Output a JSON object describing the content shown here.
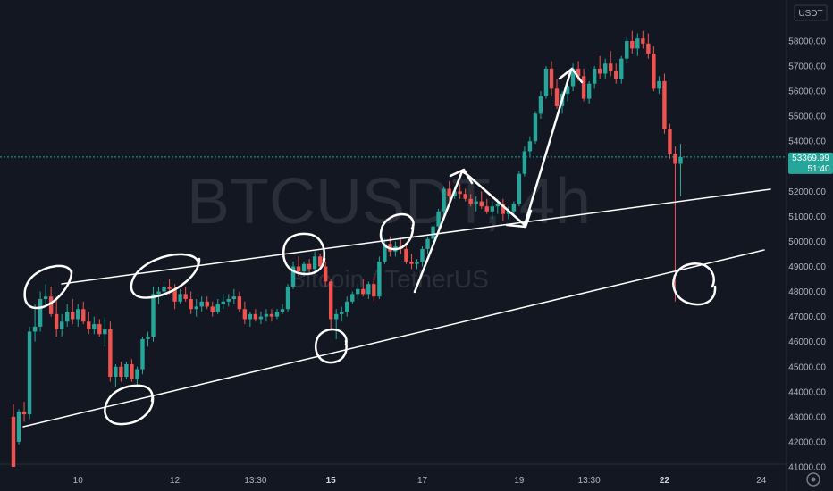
{
  "chart_data": {
    "type": "candlestick",
    "symbol_watermark": "BTCUSDT, 4h",
    "name_watermark": "Bitcoin / TetherUS",
    "currency_label": "USDT",
    "settings_icon": "gear-icon",
    "price_label": "53369.99",
    "countdown_label": "51:40",
    "current_price": 53369.99,
    "ylim": [
      41000,
      59500
    ],
    "y_ticks": [
      {
        "label": "58000.00",
        "v": 58000
      },
      {
        "label": "57000.00",
        "v": 57000
      },
      {
        "label": "56000.00",
        "v": 56000
      },
      {
        "label": "55000.00",
        "v": 55000
      },
      {
        "label": "54000.00",
        "v": 54000
      },
      {
        "label": "52000.00",
        "v": 52000
      },
      {
        "label": "51000.00",
        "v": 51000
      },
      {
        "label": "50000.00",
        "v": 50000
      },
      {
        "label": "49000.00",
        "v": 49000
      },
      {
        "label": "48000.00",
        "v": 48000
      },
      {
        "label": "47000.00",
        "v": 47000
      },
      {
        "label": "46000.00",
        "v": 46000
      },
      {
        "label": "45000.00",
        "v": 45000
      },
      {
        "label": "44000.00",
        "v": 44000
      },
      {
        "label": "43000.00",
        "v": 43000
      },
      {
        "label": "42000.00",
        "v": 42000
      },
      {
        "label": "41000.00",
        "v": 41000
      }
    ],
    "x_ticks": [
      {
        "label": "10",
        "i": 12,
        "bold": false
      },
      {
        "label": "12",
        "i": 30,
        "bold": false
      },
      {
        "label": "13:30",
        "i": 45,
        "bold": false
      },
      {
        "label": "15",
        "i": 59,
        "bold": true
      },
      {
        "label": "17",
        "i": 76,
        "bold": false
      },
      {
        "label": "19",
        "i": 94,
        "bold": false
      },
      {
        "label": "13:30",
        "i": 107,
        "bold": false
      },
      {
        "label": "22",
        "i": 121,
        "bold": true
      },
      {
        "label": "24",
        "i": 139,
        "bold": false
      }
    ],
    "colors": {
      "up": "#26a69a",
      "down": "#ef5350",
      "background": "#131722",
      "drawing": "#ffffff"
    },
    "candles": [
      [
        43000,
        43500,
        41000,
        41000
      ],
      [
        42000,
        43300,
        41900,
        43200
      ],
      [
        43200,
        43600,
        42800,
        43100
      ],
      [
        43100,
        46600,
        42900,
        46400
      ],
      [
        46400,
        47500,
        46000,
        46600
      ],
      [
        46600,
        48000,
        46400,
        47700
      ],
      [
        47700,
        48300,
        47500,
        47800
      ],
      [
        47800,
        48200,
        47000,
        47100
      ],
      [
        47100,
        47800,
        46200,
        46500
      ],
      [
        46500,
        47100,
        46200,
        46800
      ],
      [
        46800,
        47500,
        46600,
        47200
      ],
      [
        47200,
        47700,
        46700,
        46900
      ],
      [
        46900,
        47500,
        46600,
        47300
      ],
      [
        47300,
        47600,
        46700,
        46800
      ],
      [
        46800,
        47200,
        46300,
        46500
      ],
      [
        46500,
        47000,
        46300,
        46700
      ],
      [
        46700,
        46900,
        46200,
        46300
      ],
      [
        46300,
        47000,
        45800,
        46500
      ],
      [
        46500,
        46800,
        44400,
        44600
      ],
      [
        44600,
        45100,
        44200,
        45000
      ],
      [
        45000,
        45200,
        44400,
        44600
      ],
      [
        44600,
        45200,
        44500,
        45100
      ],
      [
        45100,
        45300,
        44400,
        44500
      ],
      [
        44500,
        45000,
        44300,
        44900
      ],
      [
        44900,
        46200,
        44700,
        46100
      ],
      [
        46100,
        46400,
        45800,
        46200
      ],
      [
        46200,
        48200,
        46000,
        47900
      ],
      [
        47900,
        48200,
        47500,
        48000
      ],
      [
        48000,
        48400,
        47700,
        48200
      ],
      [
        48200,
        48500,
        47900,
        48100
      ],
      [
        48100,
        48300,
        47300,
        47600
      ],
      [
        47600,
        48100,
        47500,
        47900
      ],
      [
        47900,
        48200,
        47600,
        47700
      ],
      [
        47700,
        48000,
        47100,
        47300
      ],
      [
        47300,
        47700,
        47000,
        47400
      ],
      [
        47400,
        47800,
        47200,
        47600
      ],
      [
        47600,
        47800,
        47300,
        47400
      ],
      [
        47400,
        47600,
        47000,
        47200
      ],
      [
        47200,
        47700,
        47100,
        47500
      ],
      [
        47500,
        47900,
        47300,
        47600
      ],
      [
        47600,
        47900,
        47400,
        47700
      ],
      [
        47700,
        48100,
        47500,
        47800
      ],
      [
        47800,
        48000,
        47200,
        47300
      ],
      [
        47300,
        47600,
        46700,
        46900
      ],
      [
        46900,
        47200,
        46600,
        47100
      ],
      [
        47100,
        47300,
        46800,
        46900
      ],
      [
        46900,
        47200,
        46700,
        47000
      ],
      [
        47000,
        47300,
        46800,
        47100
      ],
      [
        47100,
        47300,
        46800,
        47000
      ],
      [
        47000,
        47300,
        46900,
        47200
      ],
      [
        47200,
        47500,
        47100,
        47300
      ],
      [
        47300,
        48300,
        47200,
        48200
      ],
      [
        48200,
        49200,
        48100,
        49000
      ],
      [
        49000,
        49400,
        48600,
        48800
      ],
      [
        48800,
        49200,
        48600,
        49100
      ],
      [
        49100,
        49300,
        48700,
        48900
      ],
      [
        48900,
        49600,
        48800,
        49400
      ],
      [
        49400,
        49500,
        48900,
        49000
      ],
      [
        49000,
        49200,
        48200,
        48400
      ],
      [
        48400,
        48500,
        46500,
        46900
      ],
      [
        46900,
        47300,
        46100,
        47100
      ],
      [
        47100,
        47400,
        46800,
        47200
      ],
      [
        47200,
        47800,
        47000,
        47600
      ],
      [
        47600,
        48000,
        47500,
        47900
      ],
      [
        47900,
        48300,
        47700,
        48100
      ],
      [
        48100,
        48500,
        47800,
        47900
      ],
      [
        47900,
        48400,
        47700,
        48300
      ],
      [
        48300,
        48600,
        47600,
        47800
      ],
      [
        47800,
        49400,
        47700,
        49200
      ],
      [
        49200,
        50100,
        49100,
        49900
      ],
      [
        49900,
        50200,
        49400,
        49600
      ],
      [
        49600,
        50000,
        49400,
        49800
      ],
      [
        49800,
        50100,
        49500,
        49700
      ],
      [
        49700,
        49900,
        49100,
        49200
      ],
      [
        49200,
        49500,
        48900,
        49100
      ],
      [
        49100,
        49300,
        48900,
        49200
      ],
      [
        49200,
        49800,
        49000,
        49700
      ],
      [
        49700,
        50200,
        49500,
        50100
      ],
      [
        50100,
        50700,
        49900,
        50600
      ],
      [
        50600,
        51300,
        50400,
        51200
      ],
      [
        51200,
        52200,
        51000,
        52100
      ],
      [
        52100,
        52400,
        51600,
        51800
      ],
      [
        51800,
        52200,
        51700,
        52000
      ],
      [
        52000,
        52300,
        51700,
        51900
      ],
      [
        51900,
        52100,
        51600,
        51700
      ],
      [
        51700,
        51900,
        51400,
        51500
      ],
      [
        51500,
        51800,
        51200,
        51600
      ],
      [
        51600,
        52000,
        51300,
        51400
      ],
      [
        51400,
        51700,
        51100,
        51200
      ],
      [
        51200,
        51600,
        50900,
        51400
      ],
      [
        51400,
        51700,
        51100,
        51500
      ],
      [
        51500,
        51700,
        50800,
        51100
      ],
      [
        51100,
        51400,
        50900,
        51200
      ],
      [
        51200,
        51600,
        51000,
        51500
      ],
      [
        51500,
        52800,
        51400,
        52700
      ],
      [
        52700,
        53800,
        52600,
        53600
      ],
      [
        53600,
        54200,
        53400,
        54000
      ],
      [
        54000,
        55200,
        53900,
        55100
      ],
      [
        55100,
        56000,
        54900,
        55800
      ],
      [
        55800,
        57000,
        55700,
        56900
      ],
      [
        56900,
        57200,
        55800,
        56100
      ],
      [
        56100,
        56500,
        55300,
        55400
      ],
      [
        55400,
        56000,
        55100,
        55900
      ],
      [
        55900,
        56400,
        55600,
        56200
      ],
      [
        56200,
        57100,
        56000,
        56900
      ],
      [
        56900,
        57200,
        56400,
        56600
      ],
      [
        56600,
        56900,
        55600,
        55700
      ],
      [
        55700,
        56400,
        55500,
        56300
      ],
      [
        56300,
        57000,
        56100,
        56900
      ],
      [
        56900,
        57400,
        56500,
        56700
      ],
      [
        56700,
        57300,
        56500,
        57100
      ],
      [
        57100,
        57600,
        56600,
        56800
      ],
      [
        56800,
        57100,
        56300,
        56500
      ],
      [
        56500,
        57400,
        56300,
        57300
      ],
      [
        57300,
        58200,
        57100,
        58000
      ],
      [
        58000,
        58400,
        57500,
        57700
      ],
      [
        57700,
        58300,
        57400,
        58100
      ],
      [
        58100,
        58400,
        57700,
        57900
      ],
      [
        57900,
        58300,
        57300,
        57500
      ],
      [
        57500,
        57800,
        56000,
        56100
      ],
      [
        56100,
        56600,
        55900,
        56400
      ],
      [
        56400,
        56700,
        54300,
        54500
      ],
      [
        54500,
        54700,
        53300,
        53500
      ],
      [
        53500,
        53800,
        47600,
        53100
      ],
      [
        53100,
        53900,
        51800,
        53370
      ]
    ]
  }
}
